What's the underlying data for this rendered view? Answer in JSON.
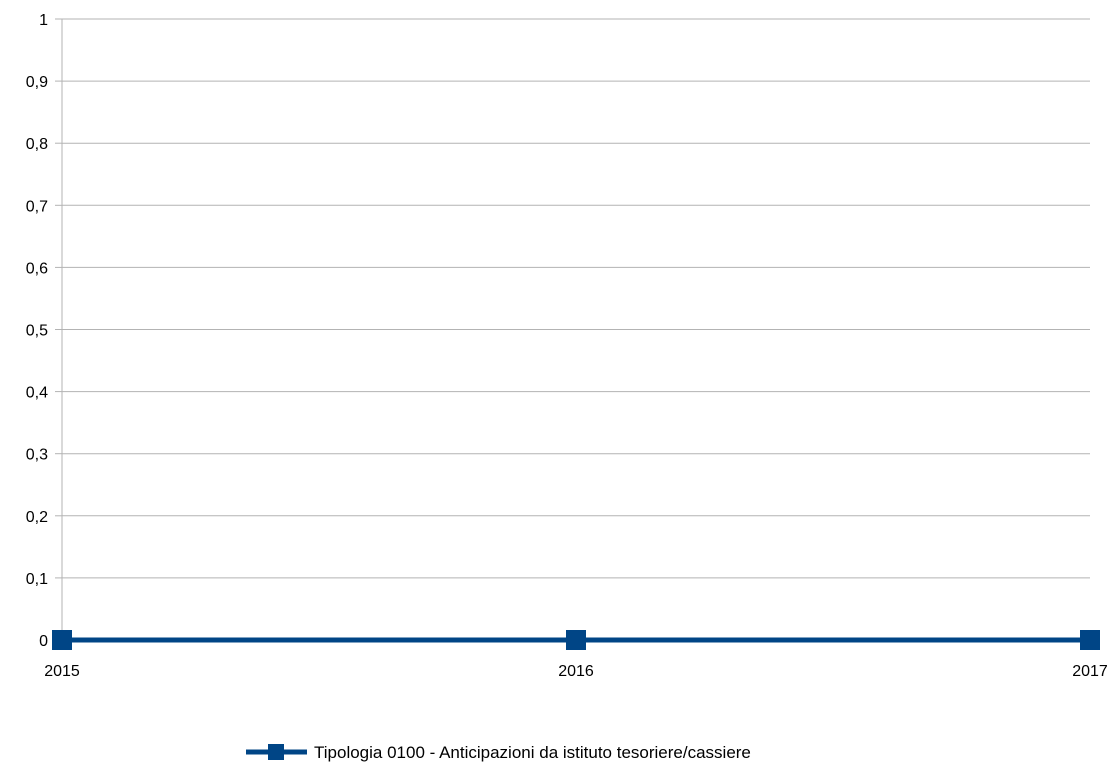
{
  "chart_data": {
    "type": "line",
    "title": "",
    "xlabel": "",
    "ylabel": "",
    "categories": [
      "2015",
      "2016",
      "2017"
    ],
    "series": [
      {
        "name": "Tipologia 0100 - Anticipazioni da istituto tesoriere/cassiere",
        "values": [
          0,
          0,
          0
        ],
        "color": "#004586",
        "marker": "square"
      }
    ],
    "ylim": [
      0,
      1
    ],
    "y_ticks": [
      "0",
      "0,1",
      "0,2",
      "0,3",
      "0,4",
      "0,5",
      "0,6",
      "0,7",
      "0,8",
      "0,9",
      "1"
    ],
    "grid": true,
    "legend_position": "bottom"
  }
}
